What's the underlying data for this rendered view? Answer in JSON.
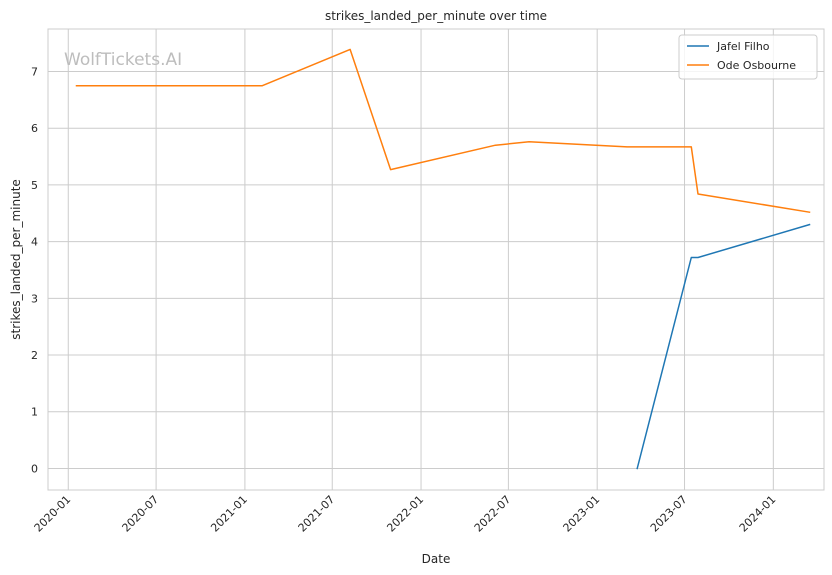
{
  "chart_data": {
    "type": "line",
    "title": "strikes_landed_per_minute over time",
    "xlabel": "Date",
    "ylabel": "strikes_landed_per_minute",
    "watermark": "WolfTickets.AI",
    "x_range": [
      "2019-11-20",
      "2024-04-15"
    ],
    "ylim": [
      -0.38,
      7.75
    ],
    "grid": true,
    "legend_position": "top-right",
    "x_ticks": [
      "2020-01",
      "2020-07",
      "2021-01",
      "2021-07",
      "2022-01",
      "2022-07",
      "2023-01",
      "2023-07",
      "2024-01"
    ],
    "y_ticks": [
      "0",
      "1",
      "2",
      "3",
      "4",
      "5",
      "6",
      "7"
    ],
    "series": [
      {
        "name": "Jafel Filho",
        "color": "#1f77b4",
        "points": [
          {
            "x": "2023-03-25",
            "y": 0.0
          },
          {
            "x": "2023-07-15",
            "y": 3.72
          },
          {
            "x": "2023-07-29",
            "y": 3.72
          },
          {
            "x": "2024-03-16",
            "y": 4.3
          }
        ]
      },
      {
        "name": "Ode Osbourne",
        "color": "#ff7f0e",
        "points": [
          {
            "x": "2020-01-18",
            "y": 6.75
          },
          {
            "x": "2021-02-06",
            "y": 6.75
          },
          {
            "x": "2021-08-07",
            "y": 7.39
          },
          {
            "x": "2021-10-30",
            "y": 5.27
          },
          {
            "x": "2022-06-04",
            "y": 5.7
          },
          {
            "x": "2022-08-13",
            "y": 5.76
          },
          {
            "x": "2023-03-04",
            "y": 5.67
          },
          {
            "x": "2023-07-15",
            "y": 5.67
          },
          {
            "x": "2023-07-29",
            "y": 4.84
          },
          {
            "x": "2024-03-16",
            "y": 4.52
          }
        ]
      }
    ]
  }
}
